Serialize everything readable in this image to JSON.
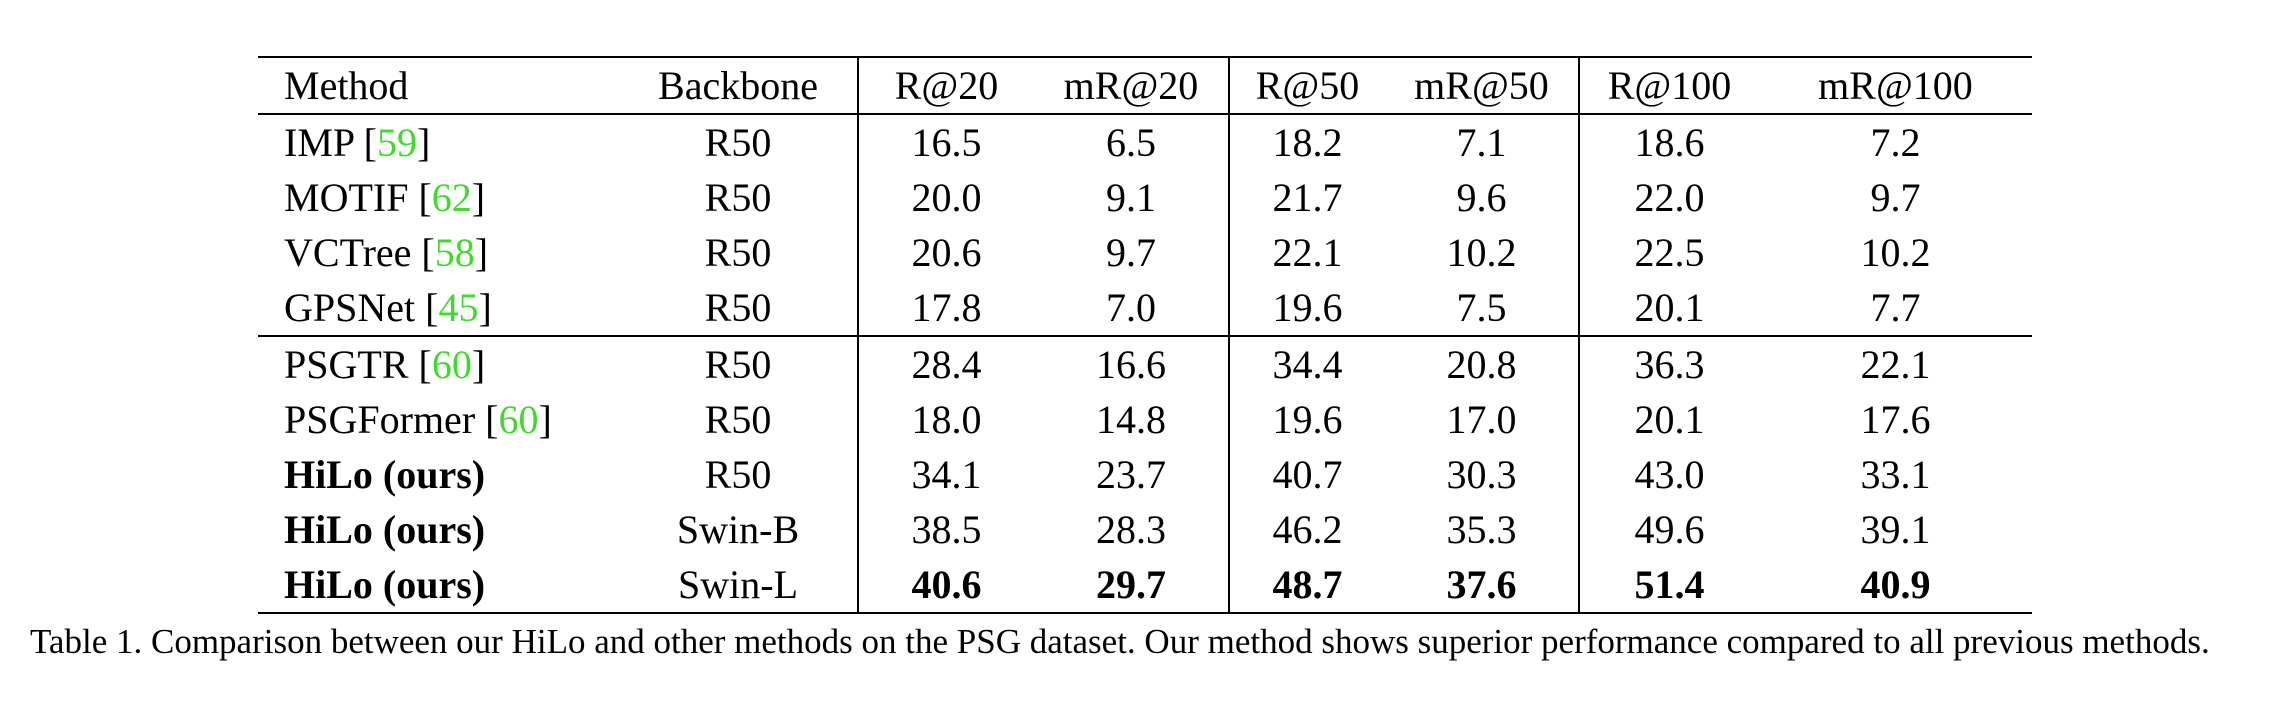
{
  "table": {
    "headers": [
      "Method",
      "Backbone",
      "R@20",
      "mR@20",
      "R@50",
      "mR@50",
      "R@100",
      "mR@100"
    ],
    "groups": [
      [
        {
          "method": "IMP",
          "ref": "59",
          "backbone": "R50",
          "values": [
            "16.5",
            "6.5",
            "18.2",
            "7.1",
            "18.6",
            "7.2"
          ]
        },
        {
          "method": "MOTIF",
          "ref": "62",
          "backbone": "R50",
          "values": [
            "20.0",
            "9.1",
            "21.7",
            "9.6",
            "22.0",
            "9.7"
          ]
        },
        {
          "method": "VCTree",
          "ref": "58",
          "backbone": "R50",
          "values": [
            "20.6",
            "9.7",
            "22.1",
            "10.2",
            "22.5",
            "10.2"
          ]
        },
        {
          "method": "GPSNet",
          "ref": "45",
          "backbone": "R50",
          "values": [
            "17.8",
            "7.0",
            "19.6",
            "7.5",
            "20.1",
            "7.7"
          ]
        }
      ],
      [
        {
          "method": "PSGTR",
          "ref": "60",
          "backbone": "R50",
          "values": [
            "28.4",
            "16.6",
            "34.4",
            "20.8",
            "36.3",
            "22.1"
          ]
        },
        {
          "method": "PSGFormer",
          "ref": "60",
          "backbone": "R50",
          "values": [
            "18.0",
            "14.8",
            "19.6",
            "17.0",
            "20.1",
            "17.6"
          ]
        },
        {
          "method": "HiLo (ours)",
          "ref": "",
          "backbone": "R50",
          "values": [
            "34.1",
            "23.7",
            "40.7",
            "30.3",
            "43.0",
            "33.1"
          ]
        },
        {
          "method": "HiLo (ours)",
          "ref": "",
          "backbone": "Swin-B",
          "values": [
            "38.5",
            "28.3",
            "46.2",
            "35.3",
            "49.6",
            "39.1"
          ]
        },
        {
          "method": "HiLo (ours)",
          "ref": "",
          "backbone": "Swin-L",
          "values": [
            "40.6",
            "29.7",
            "48.7",
            "37.6",
            "51.4",
            "40.9"
          ]
        }
      ]
    ]
  },
  "caption": "Table 1. Comparison between our HiLo and other methods on the PSG dataset. Our method shows superior performance compared to all previous methods."
}
